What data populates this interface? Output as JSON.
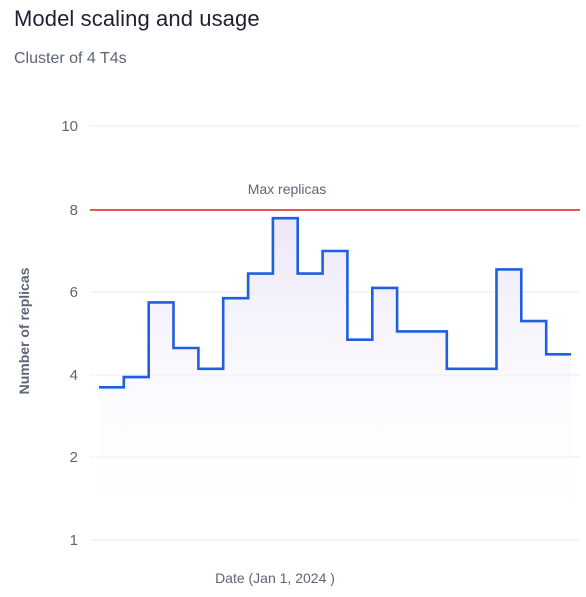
{
  "header": {
    "title": "Model scaling and usage",
    "subtitle": "Cluster of 4 T4s"
  },
  "colors": {
    "line": "#1f5fe0",
    "max_line": "#e0584f",
    "area_top": "#ece7f8",
    "area_bottom": "#ffffff",
    "grid": "#ececf0"
  },
  "chart_data": {
    "type": "line",
    "step": true,
    "title": "Model scaling and usage",
    "subtitle": "Cluster of 4 T4s",
    "xlabel": "Date (Jan 1, 2024 )",
    "ylabel": "Number of replicas",
    "y_ticks": [
      1,
      2,
      4,
      6,
      8,
      10
    ],
    "ylim": [
      1,
      10
    ],
    "grid": true,
    "reference_line": {
      "label": "Max replicas",
      "value": 8
    },
    "series": [
      {
        "values": [
          3.7,
          3.95,
          5.75,
          4.65,
          4.15,
          5.85,
          6.45,
          7.8,
          6.45,
          7.0,
          4.85,
          6.1,
          5.05,
          5.05,
          4.15,
          4.15,
          6.55,
          5.3,
          4.5
        ]
      }
    ]
  }
}
